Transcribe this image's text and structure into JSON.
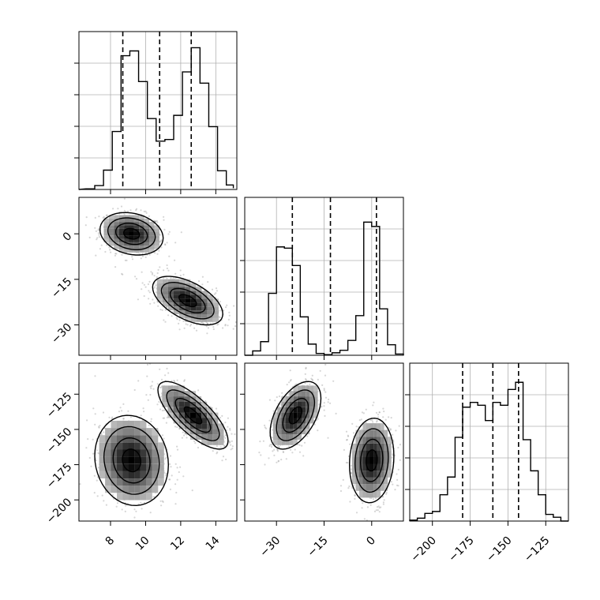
{
  "chart_data": [
    {
      "type": "histogram",
      "panel": "diag-1",
      "variable_index": 0,
      "bins": [
        6.6,
        7.1,
        7.6,
        8.1,
        8.6,
        9.1,
        9.6,
        10.1,
        10.6,
        11.1,
        11.6,
        12.1,
        12.6,
        13.1,
        13.6,
        14.1,
        14.6,
        15.0
      ],
      "counts": [
        2,
        12,
        60,
        180,
        415,
        430,
        335,
        220,
        150,
        155,
        230,
        365,
        440,
        330,
        195,
        58,
        14,
        4
      ],
      "quantiles": [
        8.7,
        10.8,
        12.6
      ],
      "xlim": [
        6.2,
        15.2
      ],
      "ylim": [
        0,
        490
      ],
      "grid": true
    },
    {
      "type": "histogram",
      "panel": "diag-2",
      "variable_index": 1,
      "bins": [
        -40,
        -37.5,
        -35,
        -32.5,
        -30,
        -27.5,
        -25,
        -22.5,
        -20,
        -17.5,
        -15,
        -12.5,
        -10,
        -7.5,
        -5,
        -2.5,
        0,
        2.5,
        5,
        7.5,
        10
      ],
      "counts": [
        0,
        7,
        22,
        100,
        175,
        173,
        145,
        62,
        18,
        3,
        1,
        4,
        8,
        24,
        64,
        215,
        208,
        75,
        17,
        2
      ],
      "quantiles": [
        -25,
        -13,
        1.5
      ],
      "xlim": [
        -40,
        10
      ],
      "ylim": [
        0,
        255
      ],
      "grid": true
    },
    {
      "type": "histogram",
      "panel": "diag-3",
      "variable_index": 2,
      "bins": [
        -215,
        -210,
        -205,
        -200,
        -195,
        -190,
        -185,
        -180,
        -175,
        -170,
        -165,
        -160,
        -155,
        -150,
        -145,
        -140,
        -135,
        -130,
        -125,
        -120,
        -115,
        -110
      ],
      "counts": [
        2,
        6,
        16,
        20,
        55,
        92,
        175,
        238,
        248,
        242,
        210,
        248,
        242,
        275,
        290,
        170,
        105,
        55,
        14,
        8,
        0
      ],
      "quantiles": [
        -180,
        -160,
        -143
      ],
      "xlim": [
        -215,
        -110
      ],
      "ylim": [
        0,
        330
      ],
      "grid": true
    },
    {
      "type": "scatter",
      "panel": "pair-1-0",
      "x_variable": 0,
      "y_variable": 1,
      "clusters": [
        {
          "center": [
            9.2,
            0
          ],
          "spread": [
            0.9,
            3.5
          ],
          "rho": -0.2,
          "size": 650
        },
        {
          "center": [
            12.4,
            -22
          ],
          "spread": [
            1.0,
            4
          ],
          "rho": -0.55,
          "size": 650
        }
      ],
      "xlim": [
        6.2,
        15.2
      ],
      "ylim": [
        -40,
        12
      ],
      "ticks_y": [
        0,
        -15,
        -30
      ],
      "ticks_y_labels": [
        "0",
        "−15",
        "−30"
      ],
      "contours": true,
      "grid": false
    },
    {
      "type": "scatter",
      "panel": "pair-2-0",
      "x_variable": 0,
      "y_variable": 2,
      "clusters": [
        {
          "center": [
            12.7,
            -140
          ],
          "spread": [
            1.0,
            12
          ],
          "rho": -0.75,
          "size": 650
        },
        {
          "center": [
            9.2,
            -172
          ],
          "spread": [
            1.05,
            16
          ],
          "rho": -0.1,
          "size": 650
        }
      ],
      "xlim": [
        6.2,
        15.2
      ],
      "ylim": [
        -215,
        -103
      ],
      "ticks_x": [
        8,
        10,
        12,
        14
      ],
      "ticks_x_labels": [
        "8",
        "10",
        "12",
        "14"
      ],
      "ticks_y": [
        -125,
        -150,
        -175,
        -200
      ],
      "ticks_y_labels": [
        "−125",
        "−150",
        "−175",
        "−200"
      ],
      "contours": true,
      "grid": false
    },
    {
      "type": "scatter",
      "panel": "pair-2-1",
      "x_variable": 1,
      "y_variable": 2,
      "clusters": [
        {
          "center": [
            -24,
            -140
          ],
          "spread": [
            4,
            12
          ],
          "rho": 0.5,
          "size": 650
        },
        {
          "center": [
            0,
            -172
          ],
          "spread": [
            3.5,
            15
          ],
          "rho": 0.1,
          "size": 650
        }
      ],
      "xlim": [
        -40,
        10
      ],
      "ylim": [
        -215,
        -103
      ],
      "ticks_x": [
        -30,
        -15,
        0
      ],
      "ticks_x_labels": [
        "−30",
        "−15",
        "0"
      ],
      "contours": true,
      "grid": false
    }
  ],
  "diag3_ticks_x": [
    -200,
    -175,
    -150,
    -125
  ],
  "diag3_ticks_x_labels": [
    "−200",
    "−175",
    "−150",
    "−125"
  ]
}
